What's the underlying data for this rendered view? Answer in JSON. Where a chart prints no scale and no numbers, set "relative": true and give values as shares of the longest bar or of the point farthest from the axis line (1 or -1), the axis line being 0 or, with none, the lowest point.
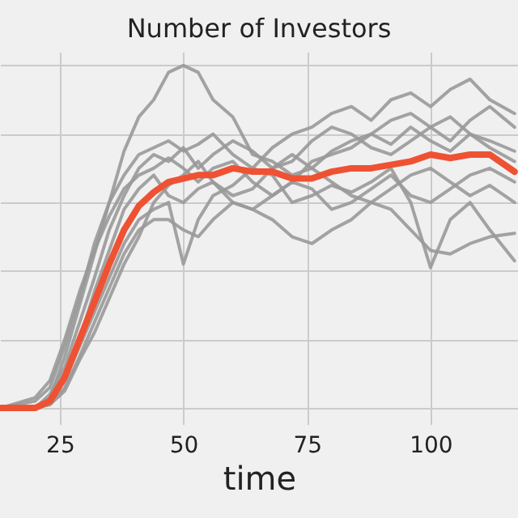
{
  "chart_data": {
    "type": "line",
    "title": "Number of Investors",
    "xlabel": "time",
    "relative": true,
    "grid": true,
    "legend": false,
    "marker": "none",
    "line_style": "solid",
    "x": [
      13,
      20,
      23,
      26,
      29,
      32,
      35,
      38,
      41,
      44,
      47,
      50,
      53,
      56,
      60,
      64,
      68,
      72,
      76,
      80,
      84,
      88,
      92,
      96,
      100,
      104,
      108,
      112,
      117
    ],
    "xlim": [
      12.9,
      117.7
    ],
    "xticks": [
      25,
      50,
      75,
      100
    ],
    "series": [
      {
        "color": "#999999",
        "values": [
          0,
          0,
          0.03,
          0.15,
          0.3,
          0.45,
          0.6,
          0.75,
          0.85,
          0.9,
          0.98,
          1.0,
          0.98,
          0.9,
          0.85,
          0.74,
          0.72,
          0.68,
          0.7,
          0.75,
          0.78,
          0.8,
          0.77,
          0.82,
          0.78,
          0.75,
          0.8,
          0.76,
          0.72
        ]
      },
      {
        "color": "#999999",
        "values": [
          0,
          0.02,
          0.06,
          0.18,
          0.32,
          0.48,
          0.6,
          0.68,
          0.74,
          0.76,
          0.78,
          0.75,
          0.77,
          0.8,
          0.74,
          0.7,
          0.76,
          0.8,
          0.82,
          0.86,
          0.88,
          0.84,
          0.9,
          0.92,
          0.88,
          0.93,
          0.96,
          0.9,
          0.86
        ]
      },
      {
        "color": "#999999",
        "values": [
          0,
          0,
          0.01,
          0.06,
          0.15,
          0.25,
          0.35,
          0.45,
          0.52,
          0.55,
          0.55,
          0.52,
          0.5,
          0.55,
          0.6,
          0.58,
          0.55,
          0.5,
          0.48,
          0.52,
          0.55,
          0.6,
          0.58,
          0.52,
          0.46,
          0.45,
          0.48,
          0.5,
          0.51
        ]
      },
      {
        "color": "#999999",
        "values": [
          0,
          0,
          0.02,
          0.08,
          0.18,
          0.28,
          0.38,
          0.48,
          0.55,
          0.58,
          0.6,
          0.42,
          0.55,
          0.62,
          0.65,
          0.7,
          0.68,
          0.6,
          0.62,
          0.65,
          0.63,
          0.66,
          0.7,
          0.6,
          0.41,
          0.55,
          0.6,
          0.52,
          0.43
        ]
      },
      {
        "color": "#999999",
        "values": [
          0,
          0,
          0.04,
          0.12,
          0.25,
          0.38,
          0.52,
          0.62,
          0.7,
          0.74,
          0.72,
          0.76,
          0.7,
          0.74,
          0.78,
          0.75,
          0.7,
          0.72,
          0.78,
          0.82,
          0.8,
          0.76,
          0.74,
          0.78,
          0.82,
          0.85,
          0.8,
          0.78,
          0.75
        ]
      },
      {
        "color": "#999999",
        "values": [
          0,
          0,
          0.01,
          0.05,
          0.14,
          0.22,
          0.32,
          0.42,
          0.5,
          0.6,
          0.65,
          0.68,
          0.72,
          0.66,
          0.62,
          0.64,
          0.7,
          0.74,
          0.7,
          0.66,
          0.62,
          0.6,
          0.64,
          0.68,
          0.7,
          0.66,
          0.62,
          0.65,
          0.6
        ]
      },
      {
        "color": "#999999",
        "values": [
          0,
          0.03,
          0.08,
          0.2,
          0.34,
          0.46,
          0.56,
          0.64,
          0.68,
          0.7,
          0.73,
          0.7,
          0.66,
          0.7,
          0.72,
          0.66,
          0.62,
          0.66,
          0.72,
          0.74,
          0.76,
          0.8,
          0.84,
          0.86,
          0.82,
          0.78,
          0.84,
          0.88,
          0.82
        ]
      },
      {
        "color": "#999999",
        "values": [
          0,
          0,
          0.02,
          0.1,
          0.2,
          0.34,
          0.46,
          0.58,
          0.64,
          0.68,
          0.62,
          0.6,
          0.64,
          0.66,
          0.6,
          0.58,
          0.62,
          0.66,
          0.64,
          0.58,
          0.6,
          0.64,
          0.68,
          0.62,
          0.6,
          0.64,
          0.68,
          0.7,
          0.66
        ]
      },
      {
        "color": "#ee5233",
        "values": [
          0,
          0,
          0.02,
          0.09,
          0.2,
          0.31,
          0.42,
          0.52,
          0.59,
          0.63,
          0.66,
          0.67,
          0.68,
          0.68,
          0.7,
          0.69,
          0.69,
          0.67,
          0.67,
          0.69,
          0.7,
          0.7,
          0.71,
          0.72,
          0.74,
          0.73,
          0.74,
          0.74,
          0.69
        ]
      }
    ]
  }
}
